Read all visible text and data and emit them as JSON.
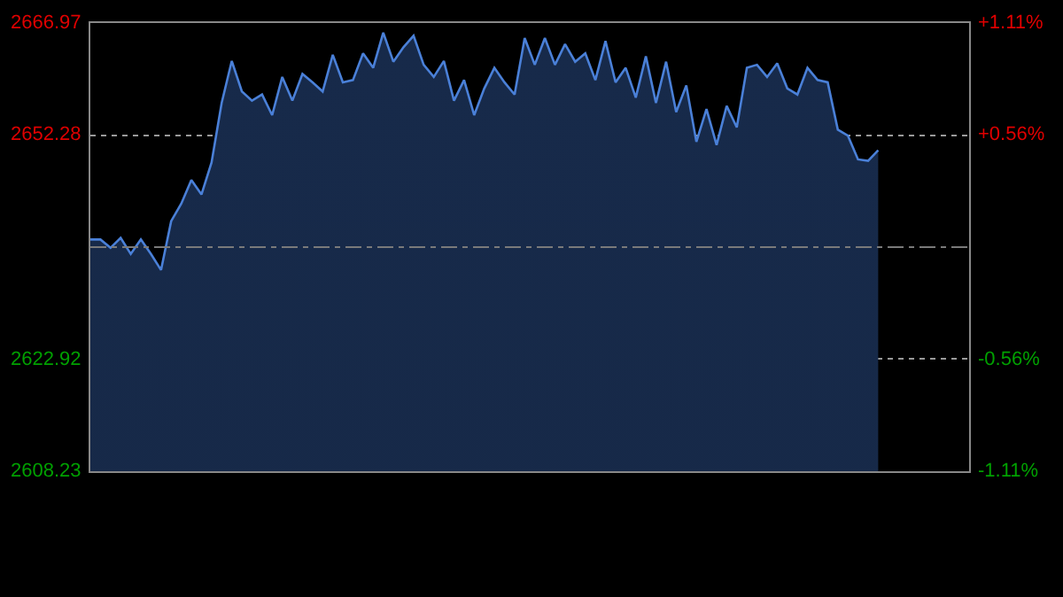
{
  "chart_data": {
    "type": "area",
    "categories": [
      null,
      null,
      null,
      null,
      null,
      null,
      null,
      null,
      null,
      null,
      null,
      null,
      null,
      null,
      null,
      null,
      null,
      null,
      null,
      null,
      null,
      null,
      null,
      null,
      null,
      null,
      null,
      null,
      null,
      null,
      null,
      null,
      null,
      null,
      null,
      null,
      null,
      null,
      null,
      null,
      null,
      null,
      null,
      null,
      null,
      null,
      null,
      null,
      null,
      null,
      null,
      null,
      null,
      null,
      null,
      null,
      null,
      null,
      null,
      null,
      null,
      null,
      null,
      null,
      null,
      null,
      null,
      null,
      null,
      null,
      null,
      null,
      null,
      null,
      null,
      null,
      null,
      null,
      null,
      null,
      null,
      null,
      null,
      null,
      null,
      null,
      null,
      null
    ],
    "series": [
      {
        "color": "#4a80d8",
        "values": [
          2638.6,
          2638.6,
          2637.5,
          2638.8,
          2636.7,
          2638.6,
          2636.7,
          2634.6,
          2641.0,
          2643.3,
          2646.4,
          2644.5,
          2648.7,
          2656.5,
          2662.0,
          2658.0,
          2656.8,
          2657.6,
          2654.9,
          2659.9,
          2656.8,
          2660.3,
          2659.2,
          2658.0,
          2662.8,
          2659.2,
          2659.5,
          2663.0,
          2661.1,
          2665.7,
          2661.9,
          2663.8,
          2665.3,
          2661.5,
          2659.9,
          2662.0,
          2656.8,
          2659.5,
          2654.9,
          2658.4,
          2661.1,
          2659.2,
          2657.6,
          2665.0,
          2661.5,
          2665.0,
          2661.5,
          2664.2,
          2661.9,
          2663.0,
          2659.5,
          2664.6,
          2659.2,
          2661.1,
          2657.2,
          2662.6,
          2656.5,
          2661.9,
          2655.3,
          2658.8,
          2651.4,
          2655.7,
          2651.0,
          2656.1,
          2653.3,
          2661.1,
          2661.5,
          2659.9,
          2661.7,
          2658.4,
          2657.6,
          2661.1,
          2659.5,
          2659.2,
          2653.0,
          2652.2,
          2649.1,
          2648.9,
          2650.3,
          null,
          null,
          null,
          null,
          null,
          null,
          null,
          null,
          null
        ]
      }
    ],
    "ylim": [
      2608.23,
      2666.97
    ],
    "yticks": [
      2608.23,
      2622.92,
      2652.28,
      2666.97
    ],
    "y2lim": [
      -1.11,
      1.11
    ],
    "y2ticks": [
      {
        "value": -1.11,
        "label": "-1.11%"
      },
      {
        "value": -0.56,
        "label": "-0.56%"
      },
      {
        "value": 0.56,
        "label": "+0.56%"
      },
      {
        "value": 1.11,
        "label": "+1.11%"
      }
    ],
    "ref_lines": [
      {
        "axis": "y",
        "value": 2637.6,
        "line_style": "dashed",
        "color": "#7a7a7a"
      }
    ],
    "grid": "y",
    "tick_labels": "y"
  }
}
